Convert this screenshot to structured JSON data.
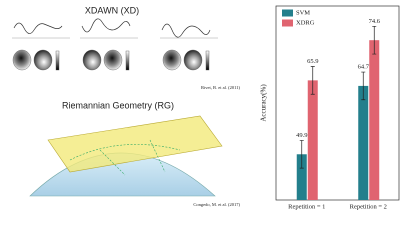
{
  "figure": {
    "xdawn_title": "XDAWN (XD)",
    "xdawn_citation": "Rivet, B. et al. (2011)",
    "rg_title": "Riemannian Geometry (RG)",
    "rg_citation": "Congedo, M. et al. (2017)"
  },
  "chart_data": {
    "type": "bar",
    "y_label": "Accuracy(%)",
    "categories": [
      "Repetition = 1",
      "Repetition = 2"
    ],
    "series": [
      {
        "name": "SVM",
        "color": "#237f8c",
        "values": [
          49.9,
          64.7
        ],
        "errors": [
          3,
          3
        ]
      },
      {
        "name": "XDRG",
        "color": "#e06470",
        "values": [
          65.9,
          74.6
        ],
        "errors": [
          3,
          3
        ]
      }
    ],
    "ylim": [
      40,
      82
    ],
    "legend": "upper left"
  }
}
